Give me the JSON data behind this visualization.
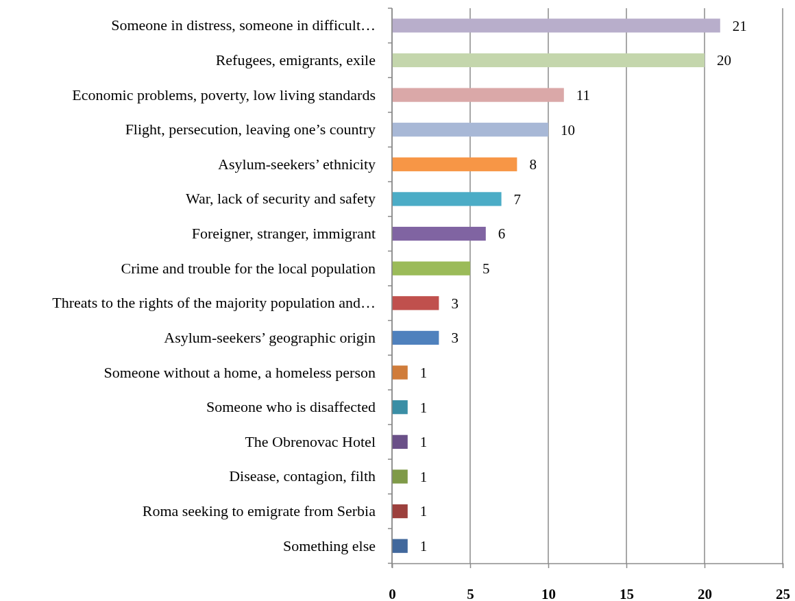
{
  "chart_data": {
    "type": "bar",
    "orientation": "horizontal",
    "categories": [
      "Someone in distress, someone in difficult…",
      "Refugees, emigrants, exile",
      "Economic problems, poverty, low living standards",
      "Flight, persecution, leaving one’s country",
      "Asylum-seekers’ ethnicity",
      "War, lack of security and safety",
      "Foreigner, stranger, immigrant",
      "Crime and trouble for the local population",
      "Threats to the rights of the majority population and…",
      "Asylum-seekers’ geographic origin",
      "Someone without a home, a homeless person",
      "Someone who is disaffected",
      "The Obrenovac Hotel",
      "Disease, contagion, filth",
      "Roma seeking to emigrate from Serbia",
      "Something else"
    ],
    "values": [
      21,
      20,
      11,
      10,
      8,
      7,
      6,
      5,
      3,
      3,
      1,
      1,
      1,
      1,
      1,
      1
    ],
    "colors": [
      "#b8aecb",
      "#c4d6ac",
      "#daa8a8",
      "#a8b8d6",
      "#f79646",
      "#4bacc6",
      "#8064a2",
      "#9bbb59",
      "#c0504d",
      "#4f81bd",
      "#d07c3a",
      "#3a8ea5",
      "#6a5088",
      "#7f9a48",
      "#9c403d",
      "#41689c"
    ],
    "xlim": [
      0,
      25
    ],
    "xticks": [
      0,
      5,
      10,
      15,
      20,
      25
    ],
    "grid": "x",
    "data_labels": true
  }
}
